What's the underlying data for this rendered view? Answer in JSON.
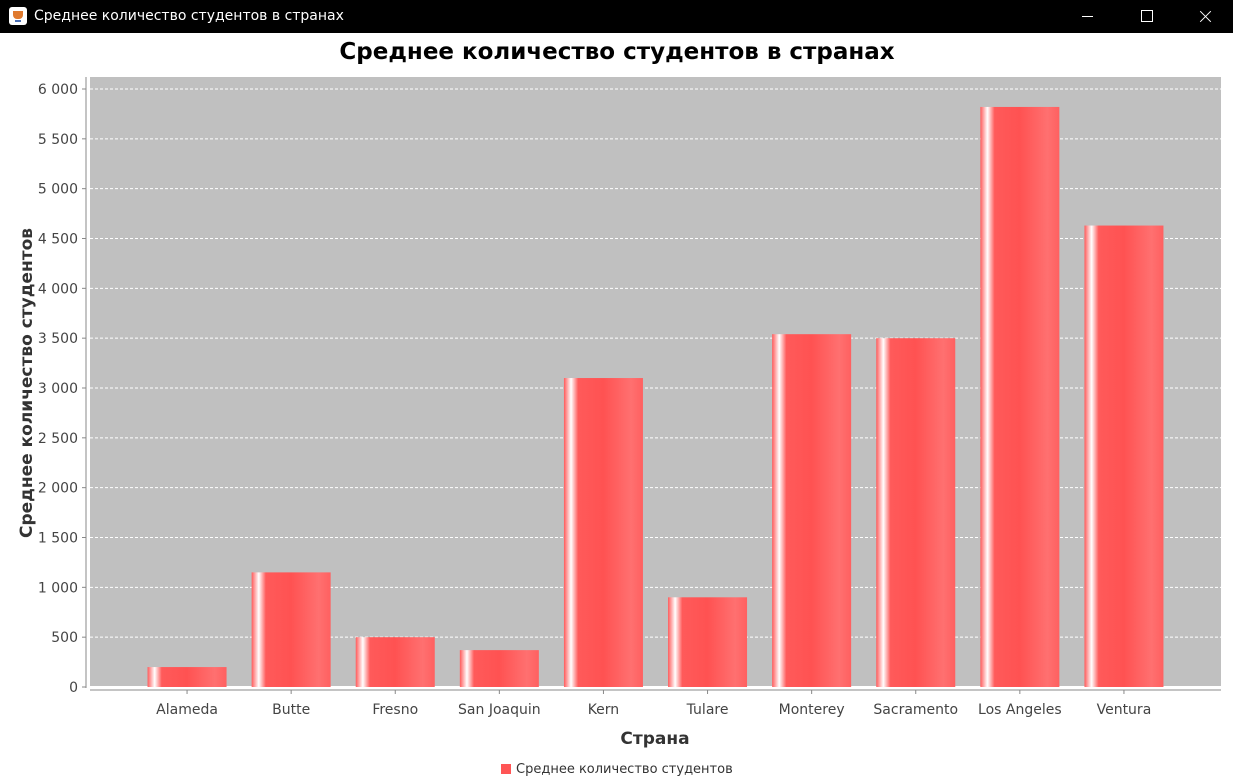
{
  "window": {
    "title": "Среднее количество студентов в странах"
  },
  "colors": {
    "titlebar": "#000000",
    "plot_background": "#c0c0c0",
    "bar": "#ff5555",
    "gridline": "#ffffff"
  },
  "chart_data": {
    "type": "bar",
    "title": "Среднее количество студентов в странах",
    "xlabel": "Страна",
    "ylabel": "Среднее количество студентов",
    "categories": [
      "Alameda",
      "Butte",
      "Fresno",
      "San Joaquin",
      "Kern",
      "Tulare",
      "Monterey",
      "Sacramento",
      "Los Angeles",
      "Ventura"
    ],
    "series": [
      {
        "name": "Среднее количество студентов",
        "values": [
          200,
          1150,
          500,
          370,
          3100,
          900,
          3540,
          3500,
          5820,
          4630
        ]
      }
    ],
    "ylim": [
      0,
      6000
    ],
    "yticks": [
      {
        "value": 0,
        "label": "0"
      },
      {
        "value": 500,
        "label": "500"
      },
      {
        "value": 1000,
        "label": "1 000"
      },
      {
        "value": 1500,
        "label": "1 500"
      },
      {
        "value": 2000,
        "label": "2 000"
      },
      {
        "value": 2500,
        "label": "2 500"
      },
      {
        "value": 3000,
        "label": "3 000"
      },
      {
        "value": 3500,
        "label": "3 500"
      },
      {
        "value": 4000,
        "label": "4 000"
      },
      {
        "value": 4500,
        "label": "4 500"
      },
      {
        "value": 5000,
        "label": "5 000"
      },
      {
        "value": 5500,
        "label": "5 500"
      },
      {
        "value": 6000,
        "label": "6 000"
      }
    ],
    "grid": true,
    "legend_position": "bottom"
  }
}
